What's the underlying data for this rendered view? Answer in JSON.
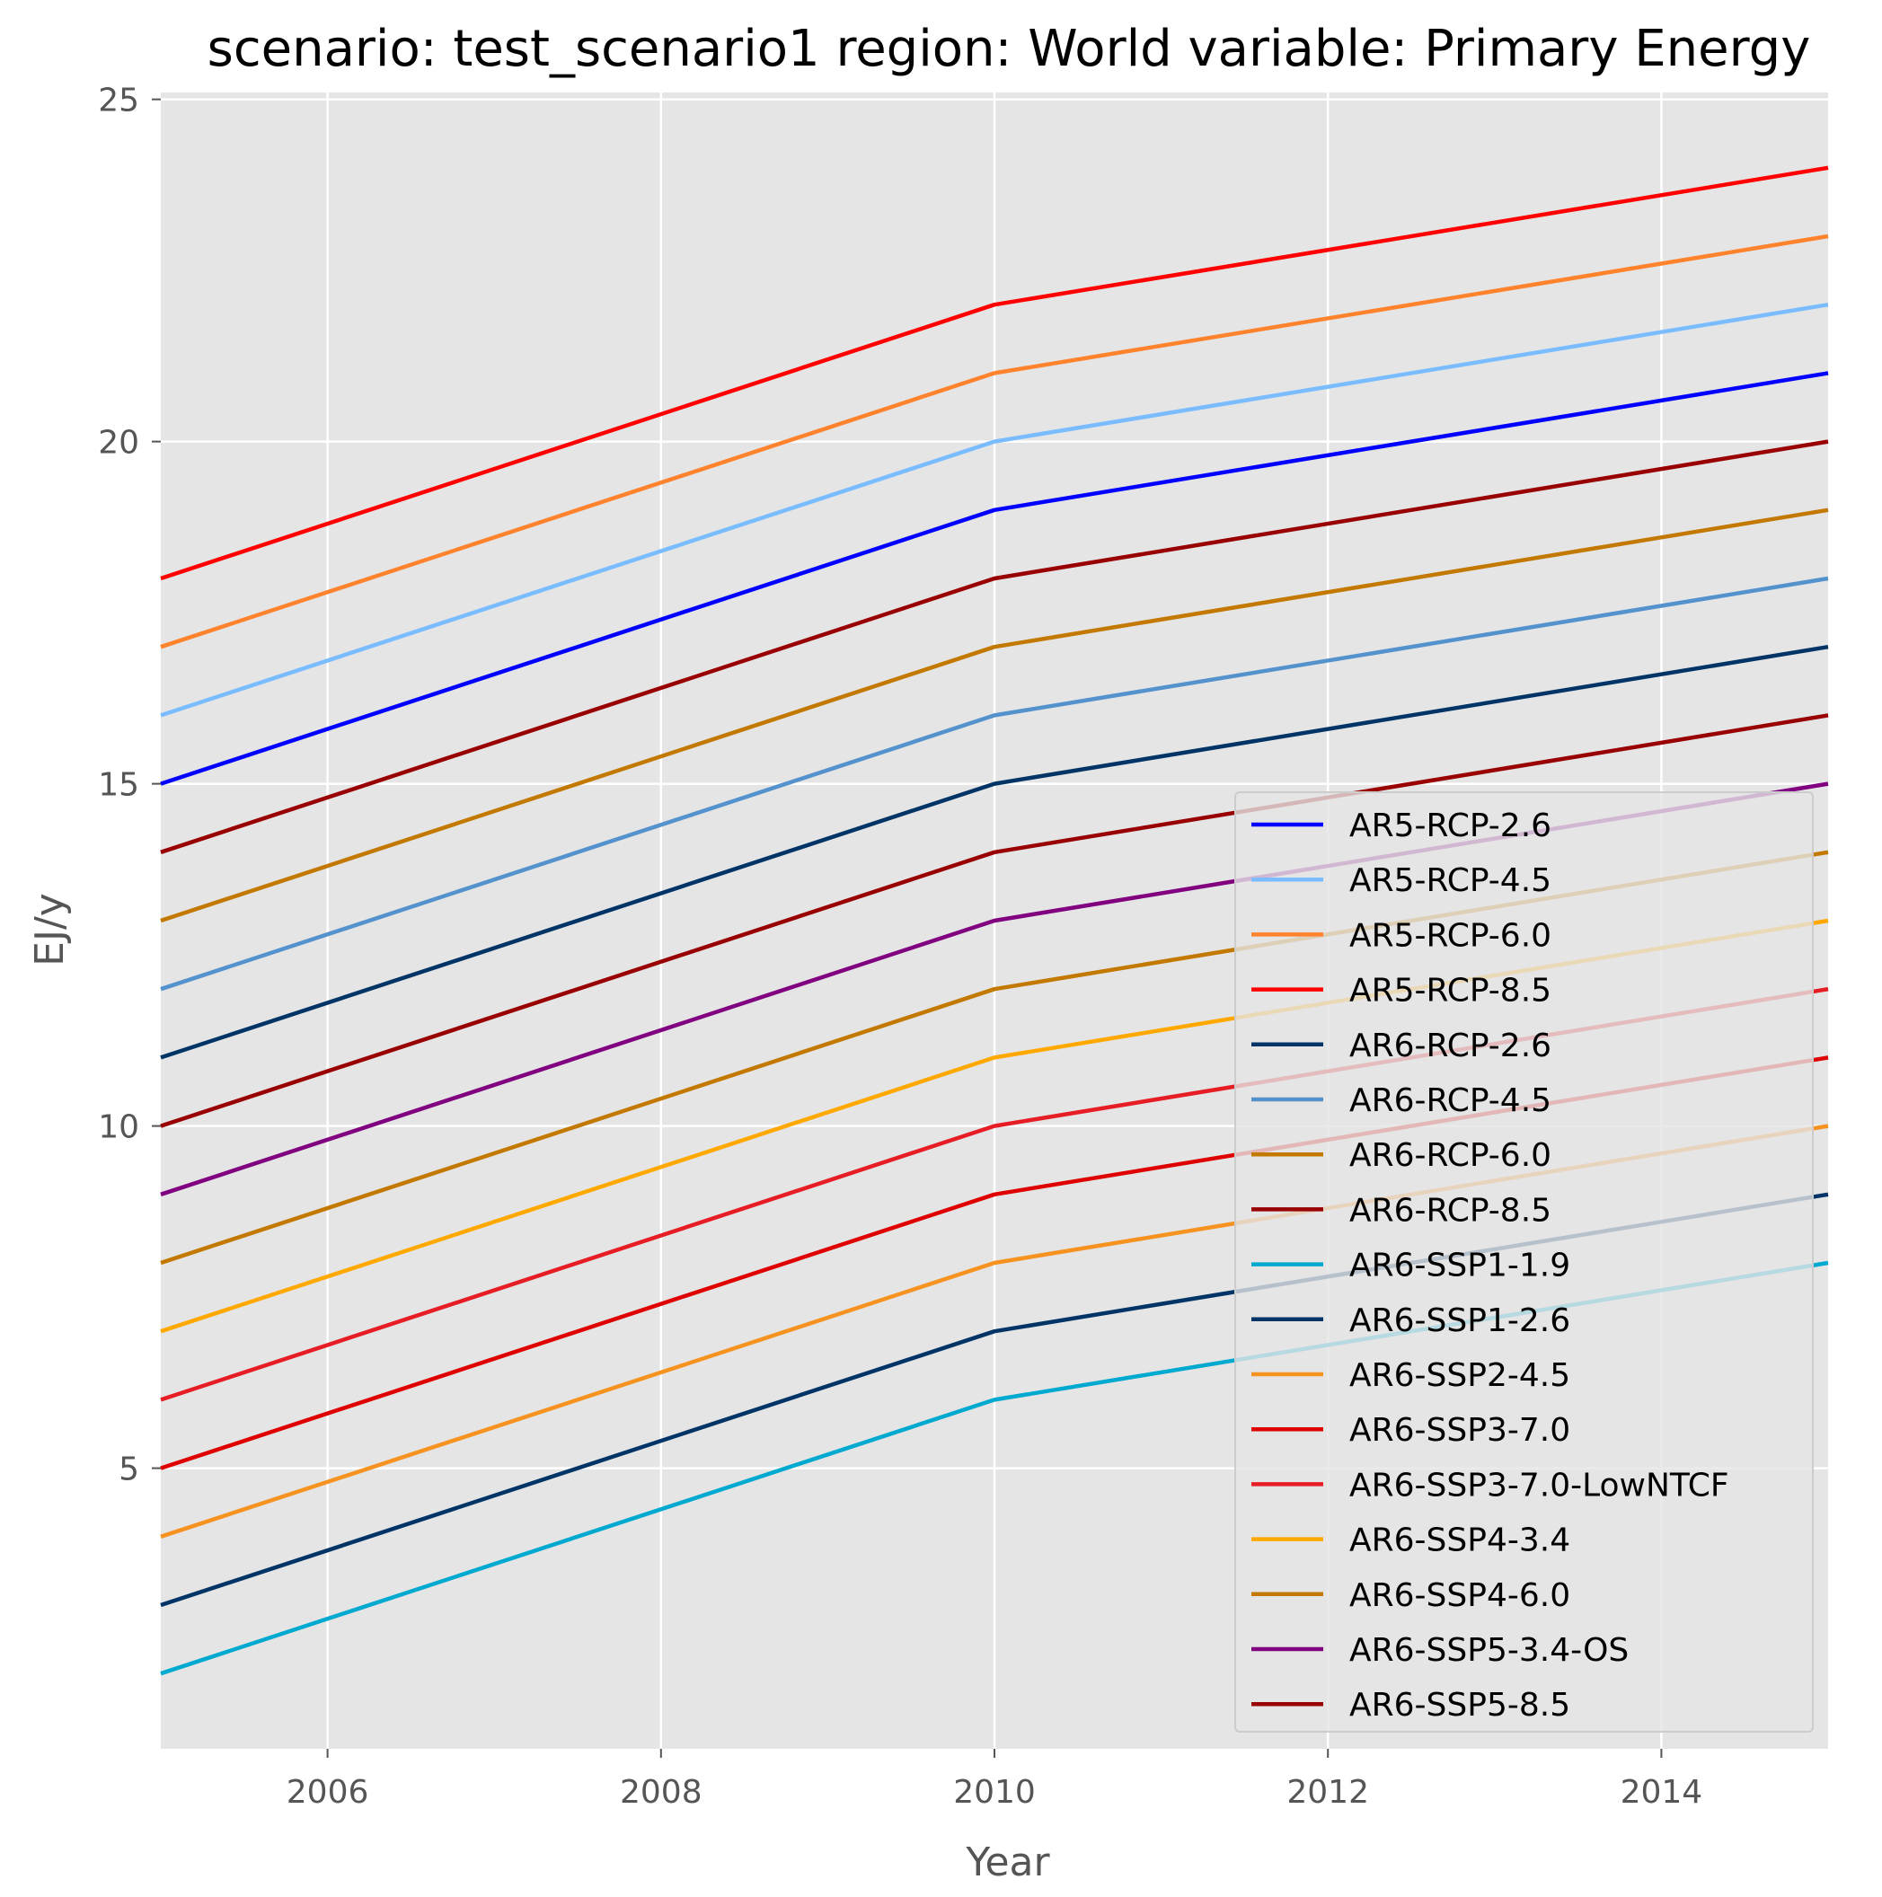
{
  "chart_data": {
    "type": "line",
    "title": "scenario: test_scenario1 region: World variable: Primary Energy",
    "xlabel": "Year",
    "ylabel": "EJ/y",
    "xlim": [
      2005,
      2015
    ],
    "ylim": [
      0.9,
      25.1
    ],
    "x_ticks": [
      2006,
      2008,
      2010,
      2012,
      2014
    ],
    "y_ticks": [
      5,
      10,
      15,
      20,
      25
    ],
    "grid": true,
    "legend_position": "lower-right",
    "background_color": "#e5e5e5",
    "grid_color": "#ffffff",
    "x": [
      2005,
      2010,
      2015
    ],
    "series": [
      {
        "name": "AR5-RCP-2.6",
        "color": "#0000ff",
        "values": [
          15,
          19,
          21
        ]
      },
      {
        "name": "AR5-RCP-4.5",
        "color": "#79bcff",
        "values": [
          16,
          20,
          22
        ]
      },
      {
        "name": "AR5-RCP-6.0",
        "color": "#ff822d",
        "values": [
          17,
          21,
          23
        ]
      },
      {
        "name": "AR5-RCP-8.5",
        "color": "#ff0000",
        "values": [
          18,
          22,
          24
        ]
      },
      {
        "name": "AR6-RCP-2.6",
        "color": "#003466",
        "values": [
          11,
          15,
          17
        ]
      },
      {
        "name": "AR6-RCP-4.5",
        "color": "#5492cd",
        "values": [
          12,
          16,
          18
        ]
      },
      {
        "name": "AR6-RCP-6.0",
        "color": "#c37900",
        "values": [
          13,
          17,
          19
        ]
      },
      {
        "name": "AR6-RCP-8.5",
        "color": "#990002",
        "values": [
          14,
          18,
          20
        ]
      },
      {
        "name": "AR6-SSP1-1.9",
        "color": "#00a9cf",
        "values": [
          2,
          6,
          8
        ]
      },
      {
        "name": "AR6-SSP1-2.6",
        "color": "#003466",
        "values": [
          3,
          7,
          9
        ]
      },
      {
        "name": "AR6-SSP2-4.5",
        "color": "#f69320",
        "values": [
          4,
          8,
          10
        ]
      },
      {
        "name": "AR6-SSP3-7.0",
        "color": "#df0000",
        "values": [
          5,
          9,
          11
        ]
      },
      {
        "name": "AR6-SSP3-7.0-LowNTCF",
        "color": "#e71d25",
        "values": [
          6,
          10,
          12
        ]
      },
      {
        "name": "AR6-SSP4-3.4",
        "color": "#ffa900",
        "values": [
          7,
          11,
          13
        ]
      },
      {
        "name": "AR6-SSP4-6.0",
        "color": "#c37900",
        "values": [
          8,
          12,
          14
        ]
      },
      {
        "name": "AR6-SSP5-3.4-OS",
        "color": "#800080",
        "values": [
          9,
          13,
          15
        ]
      },
      {
        "name": "AR6-SSP5-8.5",
        "color": "#990002",
        "values": [
          10,
          14,
          16
        ]
      }
    ]
  }
}
